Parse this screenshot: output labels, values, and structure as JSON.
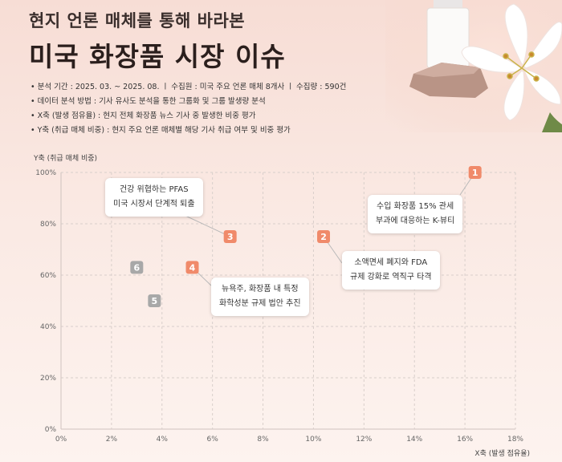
{
  "header": {
    "subtitle": "현지 언론 매체를 통해 바라본",
    "title": "미국 화장품 시장 이슈"
  },
  "notes": [
    "• 분석 기간 : 2025. 03. ~ 2025. 08.  ㅣ  수집원 : 미국 주요 언론 매체 8개사  ㅣ  수집량 : 590건",
    "• 데이터 분석 방법 : 기사 유사도 분석을 통한 그룹화 및 그룹 발생량 분석",
    "• X축 (발생 점유율) : 현지 전체 화장품 뉴스 기사 중 발생한 비중 평가",
    "• Y축 (취급 매체 비중) : 현지 주요 언론 매체별 해당 기사 취급 여부 및 비중 평가"
  ],
  "colors": {
    "highlight": "#f08a6a",
    "muted": "#a8a8a8",
    "accent": "#e86f4d"
  },
  "chart_data": {
    "type": "scatter",
    "xlabel": "X축 (발생 점유율)",
    "ylabel": "Y축 (취급 매체 비중)",
    "xlim": [
      0,
      18
    ],
    "ylim": [
      0,
      100
    ],
    "xticks": [
      "0%",
      "2%",
      "4%",
      "6%",
      "8%",
      "10%",
      "12%",
      "14%",
      "16%",
      "18%"
    ],
    "yticks": [
      "0%",
      "20%",
      "40%",
      "60%",
      "80%",
      "100%"
    ],
    "grid": true,
    "points": [
      {
        "label": "1",
        "x": 16.4,
        "y": 100,
        "highlight": true
      },
      {
        "label": "2",
        "x": 10.4,
        "y": 75,
        "highlight": true
      },
      {
        "label": "3",
        "x": 6.7,
        "y": 75,
        "highlight": true
      },
      {
        "label": "4",
        "x": 5.2,
        "y": 63,
        "highlight": true
      },
      {
        "label": "5",
        "x": 3.7,
        "y": 50,
        "highlight": false
      },
      {
        "label": "6",
        "x": 3.0,
        "y": 63,
        "highlight": false
      }
    ],
    "annotations": [
      {
        "point": "1",
        "lines": [
          "수입 화장품 15% 관세",
          "부과에 대응하는 K-뷰티"
        ]
      },
      {
        "point": "2",
        "lines": [
          "소액면세 폐지와 FDA",
          "규제 강화로 역직구 타격"
        ]
      },
      {
        "point": "3",
        "lines": [
          "건강 위협하는 PFAS",
          "미국 시장서 단계적 퇴출"
        ]
      },
      {
        "point": "4",
        "lines": [
          "뉴욕주, 화장품 내 특정",
          "화학성분 규제 법안 추진"
        ]
      }
    ]
  }
}
